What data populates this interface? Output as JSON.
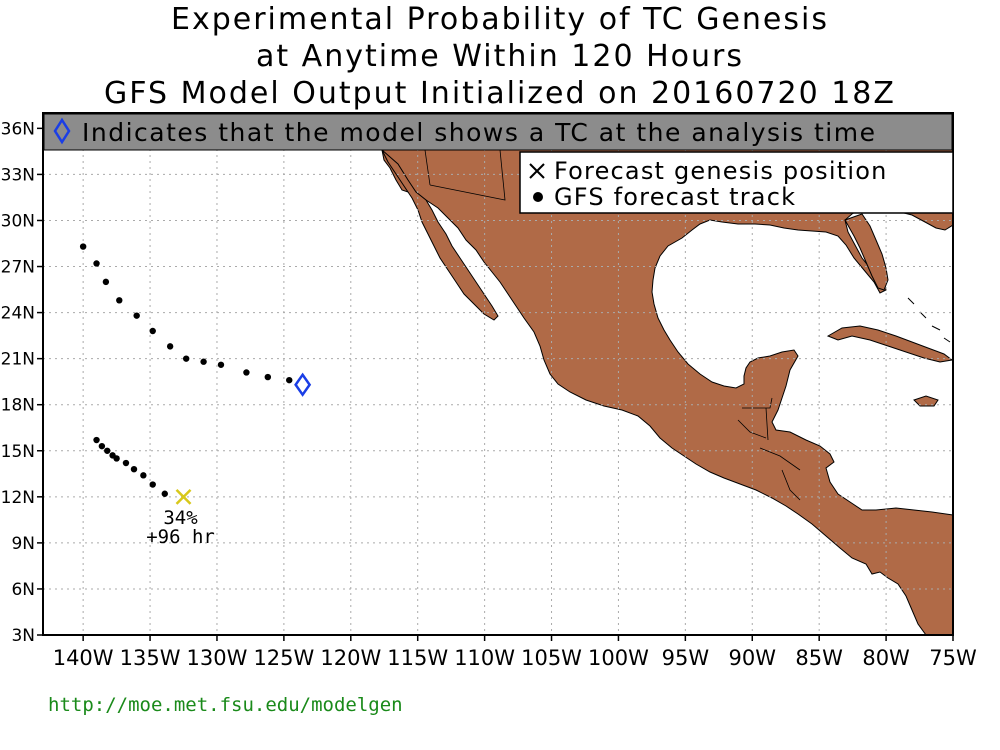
{
  "title": {
    "line1": "Experimental Probability of TC Genesis",
    "line2": "at Anytime Within 120 Hours",
    "line3": "GFS Model Output Initialized on 20160720 18Z"
  },
  "banner": {
    "text": "Indicates that the model shows a TC at the analysis time",
    "icon": "blue-diamond-icon",
    "background": "#8c8c8c"
  },
  "legend": {
    "genesis": {
      "icon": "x-mark-icon",
      "label": "Forecast genesis position"
    },
    "track": {
      "icon": "dot-icon",
      "label": "GFS forecast track"
    }
  },
  "map": {
    "lon_range": [
      -143,
      -75
    ],
    "lat_range": [
      3,
      37
    ],
    "land_color": "#b06a47",
    "ocean_color": "#ffffff",
    "grid": true,
    "lat_ticks": [
      "3N",
      "6N",
      "9N",
      "12N",
      "15N",
      "18N",
      "21N",
      "24N",
      "27N",
      "30N",
      "33N",
      "36N"
    ],
    "lon_ticks": [
      "140W",
      "135W",
      "130W",
      "125W",
      "120W",
      "115W",
      "110W",
      "105W",
      "100W",
      "95W",
      "90W",
      "85W",
      "80W",
      "75W"
    ]
  },
  "analysis_tc": {
    "lon": -123.6,
    "lat": 19.3,
    "color": "#1a3ee6"
  },
  "tracks": [
    {
      "points": [
        [
          -124.6,
          19.6
        ],
        [
          -126.2,
          19.8
        ],
        [
          -127.8,
          20.1
        ],
        [
          -129.7,
          20.6
        ],
        [
          -131.0,
          20.8
        ],
        [
          -132.3,
          21.0
        ],
        [
          -133.5,
          21.8
        ],
        [
          -134.8,
          22.8
        ],
        [
          -136.0,
          23.8
        ],
        [
          -137.3,
          24.8
        ],
        [
          -138.3,
          26.0
        ],
        [
          -139.0,
          27.2
        ],
        [
          -140.0,
          28.3
        ]
      ]
    },
    {
      "points": [
        [
          -133.9,
          12.2
        ],
        [
          -134.8,
          12.8
        ],
        [
          -135.5,
          13.4
        ],
        [
          -136.2,
          13.8
        ],
        [
          -136.8,
          14.2
        ],
        [
          -137.5,
          14.5
        ],
        [
          -137.8,
          14.7
        ],
        [
          -138.2,
          15.0
        ],
        [
          -138.6,
          15.3
        ],
        [
          -139.0,
          15.7
        ]
      ],
      "genesis": {
        "lon": -132.5,
        "lat": 12.0,
        "color": "#d8c81a",
        "probability": "34%",
        "lead_time": "+96 hr"
      }
    }
  ],
  "footer": {
    "url": "http://moe.met.fsu.edu/modelgen"
  }
}
